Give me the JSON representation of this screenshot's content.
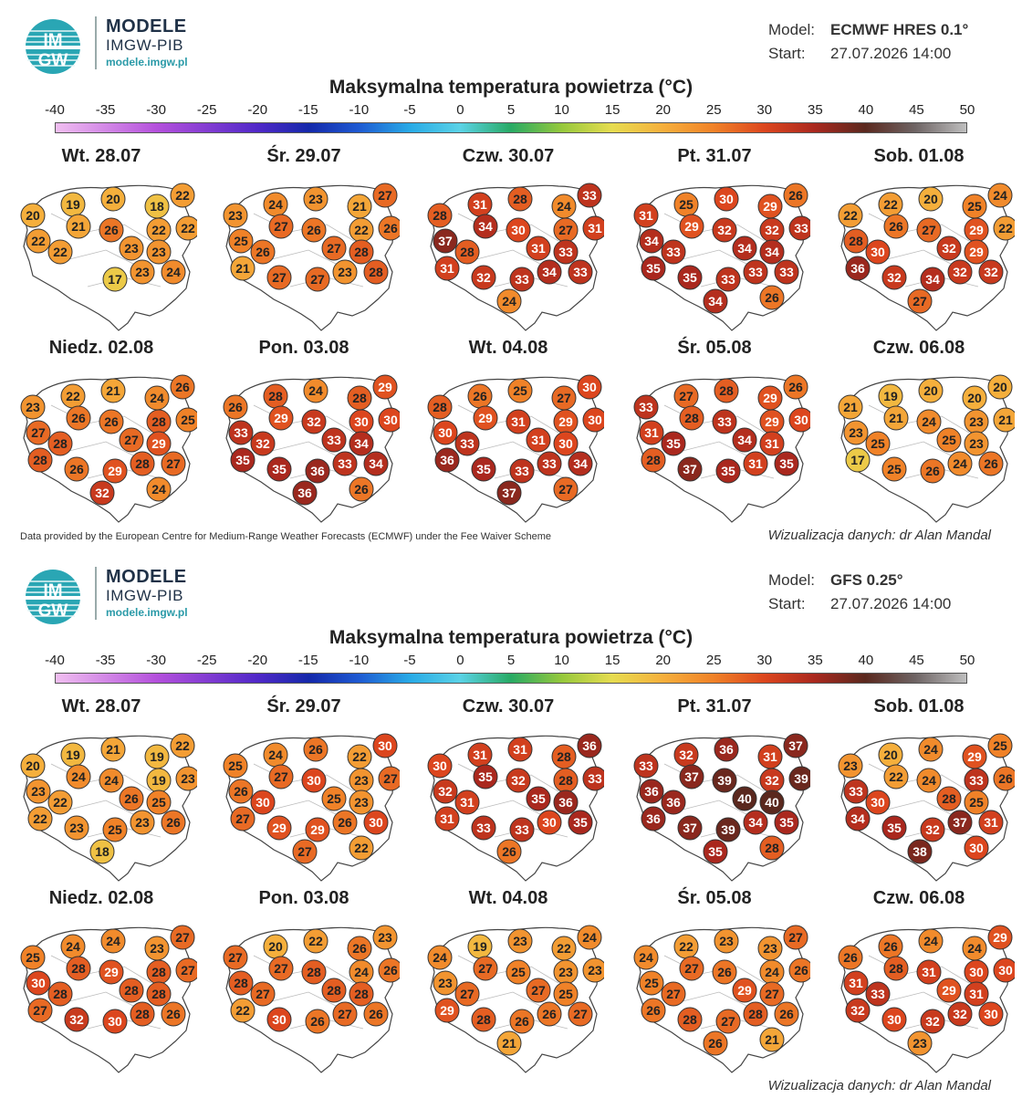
{
  "brand": {
    "logo_text": "IMGW",
    "title": "MODELE",
    "subtitle": "IMGW-PIB",
    "url": "modele.imgw.pl"
  },
  "chart_title": "Maksymalna temperatura powietrza (°C)",
  "scale_ticks": [
    "-40",
    "-35",
    "-30",
    "-25",
    "-20",
    "-15",
    "-10",
    "-5",
    "0",
    "5",
    "10",
    "15",
    "20",
    "25",
    "30",
    "35",
    "40",
    "45",
    "50"
  ],
  "colors": {
    "brand": "#1f3147",
    "accent": "#2a9aa8"
  },
  "panels": [
    {
      "model_label": "Model:",
      "model": "ECMWF HRES 0.1°",
      "start_label": "Start:",
      "start": "27.07.2026 14:00",
      "footer_left": "Data provided by the European Centre for Medium-Range Weather Forecasts (ECMWF) under the Fee Waiver Scheme",
      "footer_right": "Wizualizacja danych: dr Alan Mandal",
      "days": [
        {
          "label": "Wt. 28.07",
          "values": [
            19,
            20,
            18,
            22,
            20,
            22,
            22,
            21,
            26,
            22,
            23,
            22,
            23,
            23,
            24,
            17
          ]
        },
        {
          "label": "Śr. 29.07",
          "values": [
            24,
            23,
            21,
            27,
            23,
            22,
            26,
            27,
            26,
            25,
            28,
            26,
            23,
            27,
            28,
            27,
            27,
            21
          ]
        },
        {
          "label": "Czw. 30.07",
          "values": [
            31,
            28,
            24,
            33,
            28,
            27,
            31,
            34,
            30,
            37,
            33,
            28,
            34,
            31,
            33,
            33,
            32,
            31,
            24
          ]
        },
        {
          "label": "Pt. 31.07",
          "values": [
            25,
            30,
            29,
            26,
            31,
            32,
            33,
            29,
            32,
            34,
            34,
            33,
            33,
            34,
            33,
            33,
            35,
            35,
            34,
            26
          ]
        },
        {
          "label": "Sob. 01.08",
          "values": [
            22,
            20,
            25,
            24,
            22,
            29,
            22,
            26,
            27,
            28,
            29,
            30,
            32,
            32,
            32,
            34,
            32,
            36,
            27
          ]
        },
        {
          "label": "Niedz. 02.08",
          "values": [
            22,
            21,
            24,
            26,
            23,
            28,
            25,
            26,
            26,
            27,
            29,
            28,
            28,
            27,
            27,
            29,
            26,
            28,
            32,
            24
          ]
        },
        {
          "label": "Pon. 03.08",
          "values": [
            28,
            24,
            28,
            29,
            26,
            30,
            30,
            29,
            32,
            33,
            34,
            32,
            33,
            33,
            34,
            36,
            35,
            35,
            36,
            26
          ]
        },
        {
          "label": "Wt. 04.08",
          "values": [
            26,
            25,
            27,
            30,
            28,
            29,
            30,
            29,
            31,
            30,
            30,
            33,
            33,
            31,
            34,
            33,
            35,
            36,
            37,
            27
          ]
        },
        {
          "label": "Śr. 05.08",
          "values": [
            27,
            28,
            29,
            26,
            33,
            29,
            30,
            28,
            33,
            31,
            31,
            35,
            31,
            34,
            35,
            35,
            37,
            28
          ]
        },
        {
          "label": "Czw. 06.08",
          "values": [
            19,
            20,
            20,
            20,
            21,
            23,
            21,
            21,
            24,
            23,
            23,
            25,
            24,
            25,
            26,
            26,
            25,
            17
          ]
        }
      ]
    },
    {
      "model_label": "Model:",
      "model": "GFS 0.25°",
      "start_label": "Start:",
      "start": "27.07.2026 14:00",
      "footer_left": "",
      "footer_right": "Wizualizacja danych: dr Alan Mandal",
      "days": [
        {
          "label": "Wt. 28.07",
          "values": [
            19,
            21,
            19,
            22,
            20,
            19,
            23,
            24,
            24,
            23,
            25,
            22,
            23,
            26,
            26,
            25,
            23,
            22,
            18
          ]
        },
        {
          "label": "Śr. 29.07",
          "values": [
            24,
            26,
            22,
            30,
            25,
            23,
            27,
            27,
            30,
            26,
            23,
            30,
            26,
            25,
            30,
            29,
            29,
            27,
            27,
            22
          ]
        },
        {
          "label": "Czw. 30.07",
          "values": [
            31,
            31,
            28,
            36,
            30,
            28,
            33,
            35,
            32,
            32,
            36,
            31,
            30,
            35,
            35,
            33,
            33,
            31,
            26
          ]
        },
        {
          "label": "Pt. 31.07",
          "values": [
            32,
            36,
            31,
            37,
            33,
            32,
            39,
            37,
            39,
            36,
            40,
            36,
            34,
            40,
            35,
            39,
            37,
            36,
            35,
            28
          ]
        },
        {
          "label": "Sob. 01.08",
          "values": [
            20,
            24,
            29,
            25,
            23,
            33,
            26,
            22,
            24,
            33,
            25,
            30,
            37,
            28,
            31,
            32,
            35,
            34,
            38,
            30
          ]
        },
        {
          "label": "Niedz. 02.08",
          "values": [
            24,
            24,
            23,
            27,
            25,
            28,
            27,
            28,
            29,
            30,
            28,
            28,
            28,
            28,
            26,
            30,
            32,
            27
          ]
        },
        {
          "label": "Pon. 03.08",
          "values": [
            20,
            22,
            26,
            23,
            27,
            24,
            26,
            27,
            28,
            28,
            28,
            27,
            27,
            28,
            26,
            26,
            30,
            22
          ]
        },
        {
          "label": "Wt. 04.08",
          "values": [
            19,
            23,
            22,
            24,
            24,
            23,
            23,
            27,
            25,
            23,
            25,
            27,
            26,
            27,
            27,
            26,
            28,
            29,
            21
          ]
        },
        {
          "label": "Śr. 05.08",
          "values": [
            22,
            23,
            23,
            27,
            24,
            24,
            26,
            27,
            26,
            25,
            27,
            27,
            28,
            29,
            26,
            27,
            28,
            26,
            26,
            21
          ]
        },
        {
          "label": "Czw. 06.08",
          "values": [
            26,
            24,
            24,
            29,
            26,
            30,
            30,
            28,
            31,
            31,
            31,
            33,
            32,
            29,
            30,
            32,
            30,
            32,
            23
          ]
        }
      ]
    }
  ]
}
